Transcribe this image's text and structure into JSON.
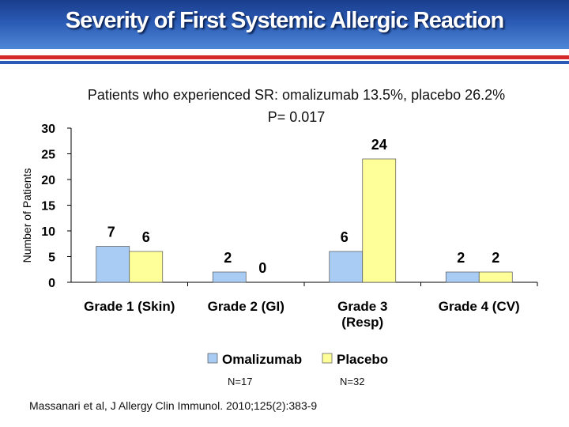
{
  "slide": {
    "title": "Severity of First Systemic Allergic Reaction",
    "subtitle_line1": "Patients who experienced SR: omalizumab 13.5%, placebo 26.2%",
    "subtitle_line2": "P= 0.017",
    "n_omalizumab": "N=17",
    "n_placebo": "N=32",
    "citation": "Massanari et al, J Allergy Clin Immunol. 2010;125(2):383-9"
  },
  "chart_data": {
    "type": "bar",
    "title": "",
    "ylabel": "Number of Patients",
    "xlabel": "",
    "ylim": [
      0,
      30
    ],
    "yticks": [
      0,
      5,
      10,
      15,
      20,
      25,
      30
    ],
    "categories": [
      [
        "Grade 1 (Skin)"
      ],
      [
        "Grade 2 (GI)"
      ],
      [
        "Grade 3",
        "(Resp)"
      ],
      [
        "Grade 4 (CV)"
      ]
    ],
    "series": [
      {
        "name": "Omalizumab",
        "values": [
          7,
          2,
          6,
          2
        ],
        "color": "#a9ccf5"
      },
      {
        "name": "Placebo",
        "values": [
          6,
          0,
          24,
          2
        ],
        "color": "#ffff99"
      }
    ],
    "legend_position": "bottom"
  }
}
